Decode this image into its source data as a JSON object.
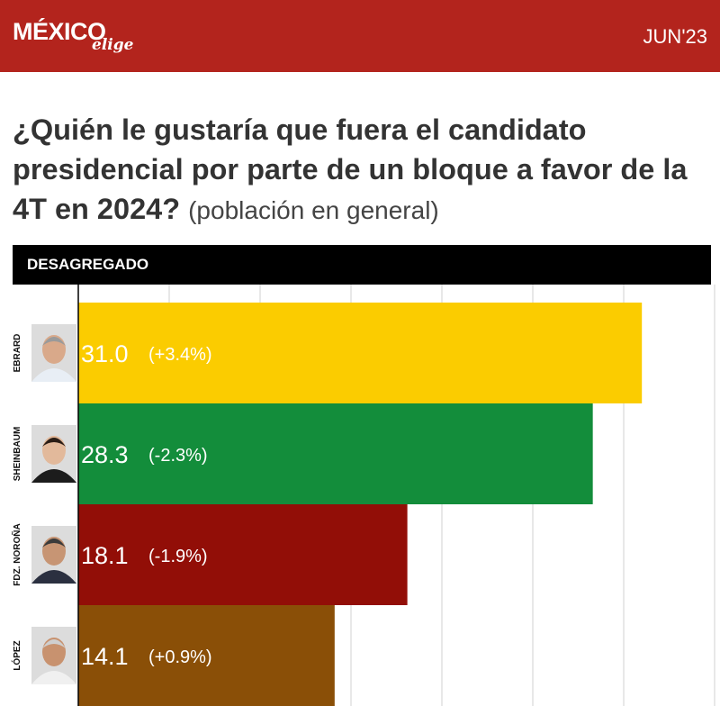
{
  "header": {
    "brand_main": "MÉXICO",
    "brand_sub": "elige",
    "date": "JUN'23",
    "color": "#b3241d"
  },
  "question": {
    "main": "¿Quién le gustaría que fuera el candidato presidencial por parte de un bloque a favor de la 4T en 2024?",
    "note": "(población en general)"
  },
  "section_label": "DESAGREGADO",
  "chart_data": {
    "type": "bar",
    "orientation": "horizontal",
    "categories": [
      "EBRARD",
      "SHEINBAUM",
      "FDZ. NOROÑA",
      "LÓPEZ"
    ],
    "values": [
      31.0,
      28.3,
      18.1,
      14.1
    ],
    "value_labels": [
      "31.0",
      "28.3",
      "18.1",
      "14.1"
    ],
    "changes": [
      "(+3.4%)",
      "(-2.3%)",
      "(-1.9%)",
      "(+0.9%)"
    ],
    "colors": [
      "#fbcc00",
      "#138d3b",
      "#920e07",
      "#8a4f07"
    ],
    "xlim": [
      0,
      35
    ],
    "grid": true
  }
}
